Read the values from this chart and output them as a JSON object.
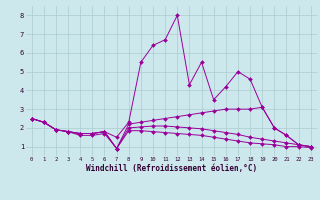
{
  "xlabel": "Windchill (Refroidissement éolien,°C)",
  "background_color": "#cce8ec",
  "grid_color": "#aacccc",
  "line_color": "#990099",
  "xlim": [
    -0.5,
    23.5
  ],
  "ylim": [
    0.5,
    8.5
  ],
  "xticks": [
    0,
    1,
    2,
    3,
    4,
    5,
    6,
    7,
    8,
    9,
    10,
    11,
    12,
    13,
    14,
    15,
    16,
    17,
    18,
    19,
    20,
    21,
    22,
    23
  ],
  "yticks": [
    1,
    2,
    3,
    4,
    5,
    6,
    7,
    8
  ],
  "series": [
    {
      "x": [
        0,
        1,
        2,
        3,
        4,
        5,
        6,
        7,
        8,
        9,
        10,
        11,
        12,
        13,
        14,
        15,
        16,
        17,
        18,
        19,
        20,
        21,
        22,
        23
      ],
      "y": [
        2.5,
        2.3,
        1.9,
        1.8,
        1.7,
        1.7,
        1.8,
        1.5,
        2.3,
        5.5,
        6.4,
        6.7,
        8.0,
        4.3,
        5.5,
        3.5,
        4.2,
        5.0,
        4.6,
        3.1,
        2.0,
        1.6,
        1.1,
        1.0
      ]
    },
    {
      "x": [
        0,
        1,
        2,
        3,
        4,
        5,
        6,
        7,
        8,
        9,
        10,
        11,
        12,
        13,
        14,
        15,
        16,
        17,
        18,
        19,
        20,
        21,
        22,
        23
      ],
      "y": [
        2.5,
        2.3,
        1.9,
        1.8,
        1.7,
        1.7,
        1.8,
        0.9,
        2.2,
        2.3,
        2.4,
        2.5,
        2.6,
        2.7,
        2.8,
        2.9,
        3.0,
        3.0,
        3.0,
        3.1,
        2.0,
        1.6,
        1.1,
        1.0
      ]
    },
    {
      "x": [
        0,
        1,
        2,
        3,
        4,
        5,
        6,
        7,
        8,
        9,
        10,
        11,
        12,
        13,
        14,
        15,
        16,
        17,
        18,
        19,
        20,
        21,
        22,
        23
      ],
      "y": [
        2.5,
        2.3,
        1.9,
        1.8,
        1.7,
        1.7,
        1.8,
        0.9,
        2.0,
        2.05,
        2.1,
        2.1,
        2.05,
        2.0,
        1.95,
        1.85,
        1.75,
        1.65,
        1.5,
        1.4,
        1.3,
        1.2,
        1.1,
        1.0
      ]
    },
    {
      "x": [
        0,
        1,
        2,
        3,
        4,
        5,
        6,
        7,
        8,
        9,
        10,
        11,
        12,
        13,
        14,
        15,
        16,
        17,
        18,
        19,
        20,
        21,
        22,
        23
      ],
      "y": [
        2.5,
        2.3,
        1.9,
        1.8,
        1.6,
        1.6,
        1.7,
        0.9,
        1.85,
        1.85,
        1.8,
        1.75,
        1.7,
        1.65,
        1.6,
        1.5,
        1.4,
        1.3,
        1.2,
        1.15,
        1.1,
        1.0,
        1.0,
        0.95
      ]
    }
  ]
}
